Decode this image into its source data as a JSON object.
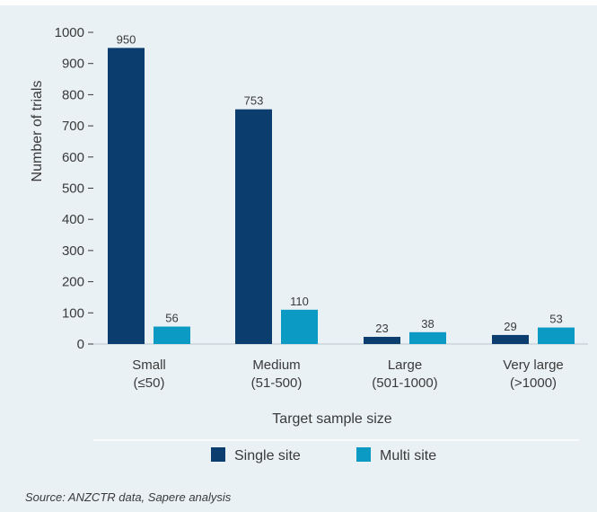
{
  "chart_data": {
    "type": "bar",
    "categories": [
      [
        "Small",
        "(≤50)"
      ],
      [
        "Medium",
        "(51-500)"
      ],
      [
        "Large",
        "(501-1000)"
      ],
      [
        "Very large",
        "(>1000)"
      ]
    ],
    "series": [
      {
        "name": "Single site",
        "values": [
          950,
          753,
          23,
          29
        ],
        "color": "#0b3d6e"
      },
      {
        "name": "Multi site",
        "values": [
          56,
          110,
          38,
          53
        ],
        "color": "#0b9ac4"
      }
    ],
    "xlabel": "Target sample size",
    "ylabel": "Number of trials",
    "ylim": [
      0,
      1000
    ],
    "yticks": [
      0,
      100,
      200,
      300,
      400,
      500,
      600,
      700,
      800,
      900,
      1000
    ],
    "legend_position": "bottom",
    "grid": false
  },
  "source": "Source: ANZCTR data, Sapere analysis"
}
